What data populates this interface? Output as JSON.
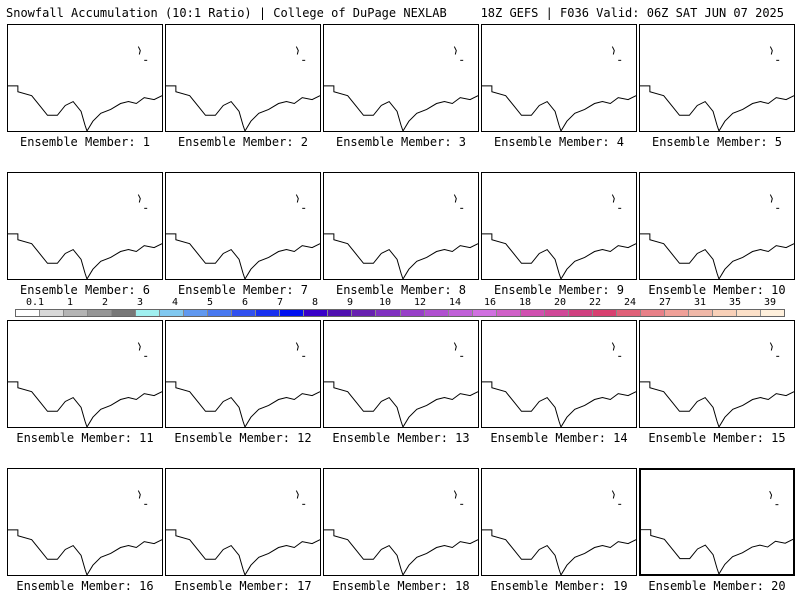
{
  "header": {
    "left": "Snowfall Accumulation (10:1 Ratio) | College of DuPage NEXLAB",
    "right": "18Z GEFS | F036 Valid: 06Z SAT JUN 07 2025"
  },
  "member_label_prefix": "Ensemble Member:",
  "members": [
    1,
    2,
    3,
    4,
    5,
    6,
    7,
    8,
    9,
    10,
    11,
    12,
    13,
    14,
    15,
    16,
    17,
    18,
    19,
    20
  ],
  "selected_member": 20,
  "colorbar": {
    "ticks": [
      "0.1",
      "1",
      "2",
      "3",
      "4",
      "5",
      "6",
      "7",
      "8",
      "9",
      "10",
      "12",
      "14",
      "16",
      "18",
      "20",
      "22",
      "24",
      "27",
      "31",
      "35",
      "39"
    ],
    "colors": [
      "#ffffff",
      "#d8d8d8",
      "#b4b4b4",
      "#969696",
      "#787878",
      "#a0f0f0",
      "#80c8f0",
      "#6098f0",
      "#4878f0",
      "#3050f0",
      "#1830f0",
      "#0010f0",
      "#3800c8",
      "#5010b0",
      "#6820b0",
      "#8030c0",
      "#9840c8",
      "#b050d0",
      "#c060d8",
      "#d070e0",
      "#d060c8",
      "#d050b0",
      "#d04898",
      "#d04080",
      "#d84070",
      "#e06078",
      "#e88088",
      "#f0a098",
      "#f0b8a8",
      "#f8d0b8",
      "#fce0c8",
      "#fff0dc"
    ]
  }
}
